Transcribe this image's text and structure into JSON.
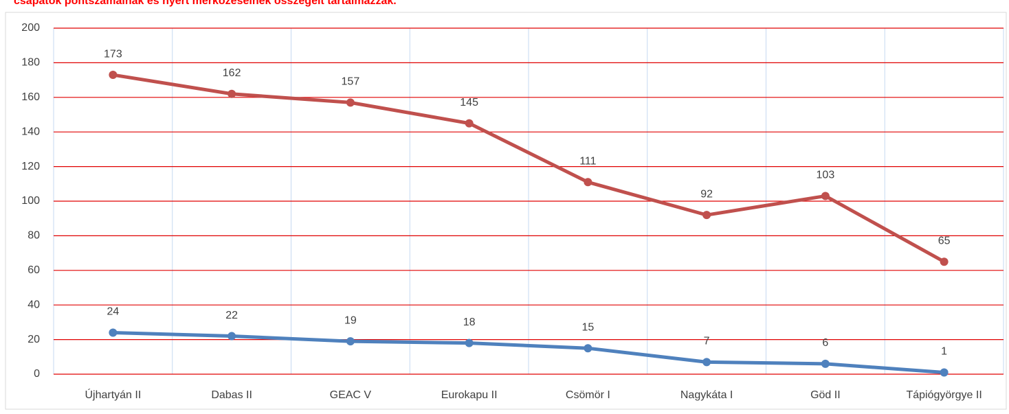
{
  "chart_data": {
    "type": "line",
    "annotation": "csapatok pontszámainak és nyert mérkőzéseinek összegeit tartalmazzák.",
    "categories": [
      "Újhartyán II",
      "Dabas II",
      "GEAC V",
      "Eurokapu II",
      "Csömör I",
      "Nagykáta I",
      "Göd II",
      "Tápiógyörgye II"
    ],
    "series": [
      {
        "color": "#c0504d",
        "values": [
          173,
          162,
          157,
          145,
          111,
          92,
          103,
          65
        ]
      },
      {
        "color": "#4f81bd",
        "values": [
          24,
          22,
          19,
          18,
          15,
          7,
          6,
          1
        ]
      }
    ],
    "ylim": [
      0,
      200
    ],
    "yticks": [
      0,
      20,
      40,
      60,
      80,
      100,
      120,
      140,
      160,
      180,
      200
    ],
    "grid": true,
    "grid_color": "#e00000",
    "vgrid_color": "#c6d9f1"
  }
}
